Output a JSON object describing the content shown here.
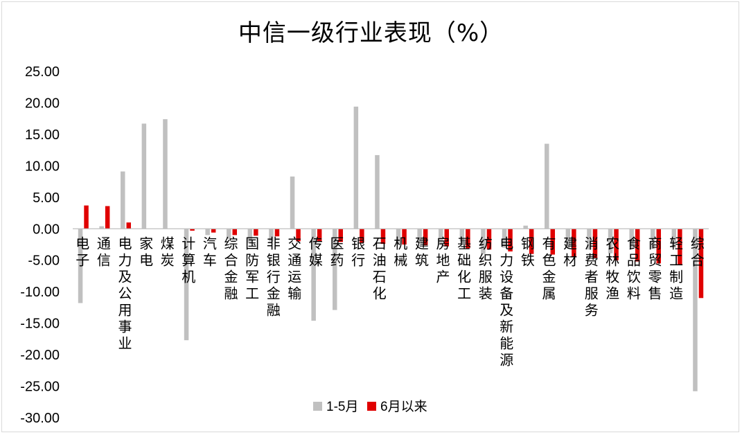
{
  "chart_data": {
    "type": "bar",
    "title": "中信一级行业表现（%）",
    "xlabel": "",
    "ylabel": "",
    "ylim": [
      -30,
      25
    ],
    "yticks": [
      "25.00",
      "20.00",
      "15.00",
      "10.00",
      "5.00",
      "0.00",
      "-5.00",
      "-10.00",
      "-15.00",
      "-20.00",
      "-25.00",
      "-30.00"
    ],
    "legend_position": "bottom",
    "grid": false,
    "categories": [
      "电子",
      "通信",
      "电力及公用事业",
      "家电",
      "煤炭",
      "计算机",
      "汽车",
      "综合金融",
      "国防军工",
      "非银行金融",
      "交通运输",
      "传媒",
      "医药",
      "银行",
      "石油石化",
      "机械",
      "建筑",
      "房地产",
      "基础化工",
      "纺织服装",
      "电力设备及新能源",
      "钢铁",
      "有色金属",
      "建材",
      "消费者服务",
      "农林牧渔",
      "食品饮料",
      "商贸零售",
      "轻工制造",
      "综合"
    ],
    "series": [
      {
        "name": "1-5月",
        "color": "#c0c0c0",
        "values": [
          -11.8,
          0.4,
          9.1,
          16.7,
          17.4,
          -17.7,
          -1.0,
          -1.6,
          -2.3,
          -2.0,
          8.3,
          -14.6,
          -12.9,
          19.4,
          11.7,
          -2.5,
          -2.3,
          -2.6,
          -2.0,
          -4.0,
          -3.0,
          0.5,
          13.5,
          -3.0,
          -3.3,
          -3.9,
          -3.0,
          -3.2,
          -3.0,
          -25.8
        ]
      },
      {
        "name": "6月以来",
        "color": "#e00000",
        "values": [
          3.7,
          3.6,
          1.0,
          0.0,
          0.0,
          -0.3,
          -0.6,
          -1.0,
          -1.1,
          -1.2,
          -2.0,
          -2.0,
          -2.1,
          -2.2,
          -2.4,
          -2.5,
          -2.6,
          -2.8,
          -3.1,
          -3.3,
          -3.6,
          -4.0,
          -4.1,
          -4.4,
          -4.6,
          -5.0,
          -5.2,
          -5.5,
          -5.8,
          -11.0
        ]
      }
    ]
  }
}
